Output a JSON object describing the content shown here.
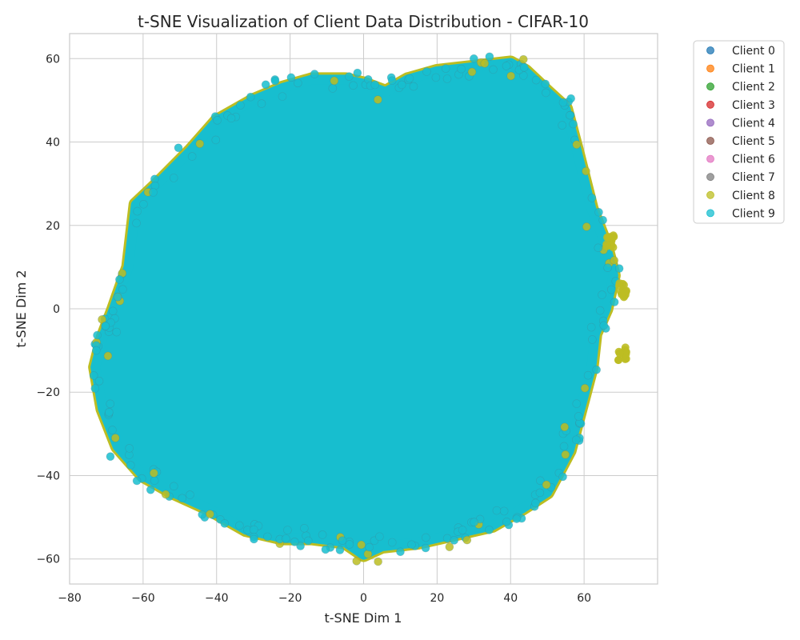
{
  "chart_data": {
    "type": "scatter",
    "title": "t-SNE Visualization of Client Data Distribution - CIFAR-10",
    "xlabel": "t-SNE Dim 1",
    "ylabel": "t-SNE Dim 2",
    "xlim": [
      -80,
      80
    ],
    "ylim": [
      -66,
      66
    ],
    "xticks": [
      -80,
      -60,
      -40,
      -20,
      0,
      20,
      40,
      60
    ],
    "yticks": [
      -60,
      -40,
      -20,
      0,
      20,
      40,
      60
    ],
    "grid": true,
    "legend_position": "outside-top-right",
    "colors": {
      "background": "#ffffff",
      "grid": "#cccccc",
      "axes_edge": "#cccccc",
      "text": "#262626"
    },
    "series": [
      {
        "name": "Client 0",
        "color": "#1f77b4"
      },
      {
        "name": "Client 1",
        "color": "#ff7f0e"
      },
      {
        "name": "Client 2",
        "color": "#2ca02c"
      },
      {
        "name": "Client 3",
        "color": "#d62728"
      },
      {
        "name": "Client 4",
        "color": "#9467bd"
      },
      {
        "name": "Client 5",
        "color": "#8c564b"
      },
      {
        "name": "Client 6",
        "color": "#e377c2"
      },
      {
        "name": "Client 7",
        "color": "#7f7f7f"
      },
      {
        "name": "Client 8",
        "color": "#bcbd22"
      },
      {
        "name": "Client 9",
        "color": "#17becf"
      }
    ],
    "cloud_outline": [
      [
        -73,
        -14
      ],
      [
        -71,
        -7
      ],
      [
        -68,
        0
      ],
      [
        -64,
        10
      ],
      [
        -62,
        25
      ],
      [
        -56,
        30
      ],
      [
        -47,
        38
      ],
      [
        -40,
        45
      ],
      [
        -30,
        50
      ],
      [
        -22,
        53
      ],
      [
        -14,
        55
      ],
      [
        -5,
        55
      ],
      [
        0,
        54
      ],
      [
        6,
        52
      ],
      [
        12,
        55
      ],
      [
        20,
        57
      ],
      [
        30,
        58
      ],
      [
        40,
        59
      ],
      [
        44,
        57
      ],
      [
        50,
        52
      ],
      [
        55,
        48
      ],
      [
        58,
        38
      ],
      [
        62,
        24
      ],
      [
        66,
        15
      ],
      [
        68,
        8
      ],
      [
        66,
        0
      ],
      [
        63,
        -6
      ],
      [
        62,
        -14
      ],
      [
        59,
        -24
      ],
      [
        56,
        -34
      ],
      [
        50,
        -44
      ],
      [
        43,
        -48
      ],
      [
        35,
        -52
      ],
      [
        25,
        -54
      ],
      [
        15,
        -56
      ],
      [
        5,
        -57
      ],
      [
        0,
        -59
      ],
      [
        -5,
        -56
      ],
      [
        -14,
        -55
      ],
      [
        -22,
        -55
      ],
      [
        -32,
        -53
      ],
      [
        -42,
        -48
      ],
      [
        -52,
        -44
      ],
      [
        -60,
        -40
      ],
      [
        -67,
        -33
      ],
      [
        -71,
        -24
      ]
    ],
    "outlier_clusters": [
      {
        "series": "Client 8",
        "x": 70.5,
        "y": -11
      },
      {
        "series": "Client 8",
        "x": 70.5,
        "y": 4.5
      },
      {
        "series": "Client 8",
        "x": 67,
        "y": 16
      }
    ]
  }
}
